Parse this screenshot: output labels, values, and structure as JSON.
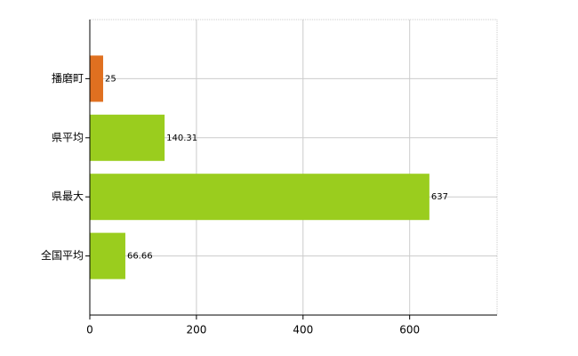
{
  "chart_data": {
    "type": "bar",
    "orientation": "horizontal",
    "categories": [
      "播磨町",
      "県平均",
      "県最大",
      "全国平均"
    ],
    "values": [
      25,
      140.31,
      637,
      66.66
    ],
    "colors": [
      "#e07020",
      "#9acd1e",
      "#9acd1e",
      "#9acd1e"
    ],
    "xlim": [
      0,
      764
    ],
    "xticks": [
      0,
      200,
      400,
      600
    ],
    "grid": true
  }
}
